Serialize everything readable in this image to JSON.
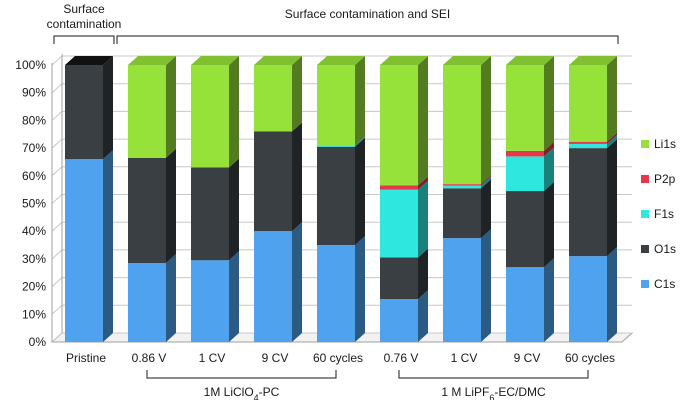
{
  "chart_data": {
    "type": "bar",
    "stacked": true,
    "style": "3d-stacked-percent",
    "categories": [
      "Pristine",
      "0.86 V",
      "1 CV",
      "9 CV",
      "60 cycles",
      "0.76 V",
      "1 CV",
      "9 CV",
      "60 cycles"
    ],
    "series": [
      {
        "name": "C1s",
        "color": "#4fa3ee",
        "values": [
          66,
          28.5,
          29.5,
          40,
          35,
          15.5,
          37.5,
          27,
          31
        ]
      },
      {
        "name": "O1s",
        "color": "#3a3f44",
        "values": [
          34,
          38,
          33.5,
          36,
          35.5,
          15,
          18,
          27.5,
          39
        ]
      },
      {
        "name": "F1s",
        "color": "#2ee8e0",
        "values": [
          0,
          0,
          0,
          0,
          0.5,
          24.5,
          1,
          12.5,
          1.5
        ]
      },
      {
        "name": "P2p",
        "color": "#e8364a",
        "values": [
          0,
          0,
          0,
          0,
          0,
          1.5,
          0.5,
          2,
          0.8
        ]
      },
      {
        "name": "Li1s",
        "color": "#96e23a",
        "values": [
          0,
          33.5,
          37,
          24,
          29,
          43.5,
          43,
          31,
          27.7
        ]
      }
    ],
    "ylim": [
      0,
      100
    ],
    "yticks": [
      "0%",
      "10%",
      "20%",
      "30%",
      "40%",
      "50%",
      "60%",
      "70%",
      "80%",
      "90%",
      "100%"
    ],
    "legend": {
      "placement": "right",
      "order": [
        "Li1s",
        "P2p",
        "F1s",
        "O1s",
        "C1s"
      ]
    },
    "top_annotations": [
      {
        "label_lines": [
          "Surface",
          "contamination"
        ],
        "spans": [
          0,
          0
        ]
      },
      {
        "label_lines": [
          "Surface contamination and SEI"
        ],
        "spans": [
          1,
          8
        ]
      }
    ],
    "group_labels": [
      {
        "label": "1M LiClO",
        "sub": "4",
        "tail": "-PC",
        "spans": [
          1,
          4
        ]
      },
      {
        "label": "1 M LiPF",
        "sub": "6",
        "tail": "-EC/DMC",
        "spans": [
          5,
          8
        ]
      }
    ],
    "colors": {
      "axis": "#a0a0a0",
      "grid": "#c8c8c8",
      "bracket": "#1a1a1a",
      "top_cap": "#111111"
    }
  }
}
